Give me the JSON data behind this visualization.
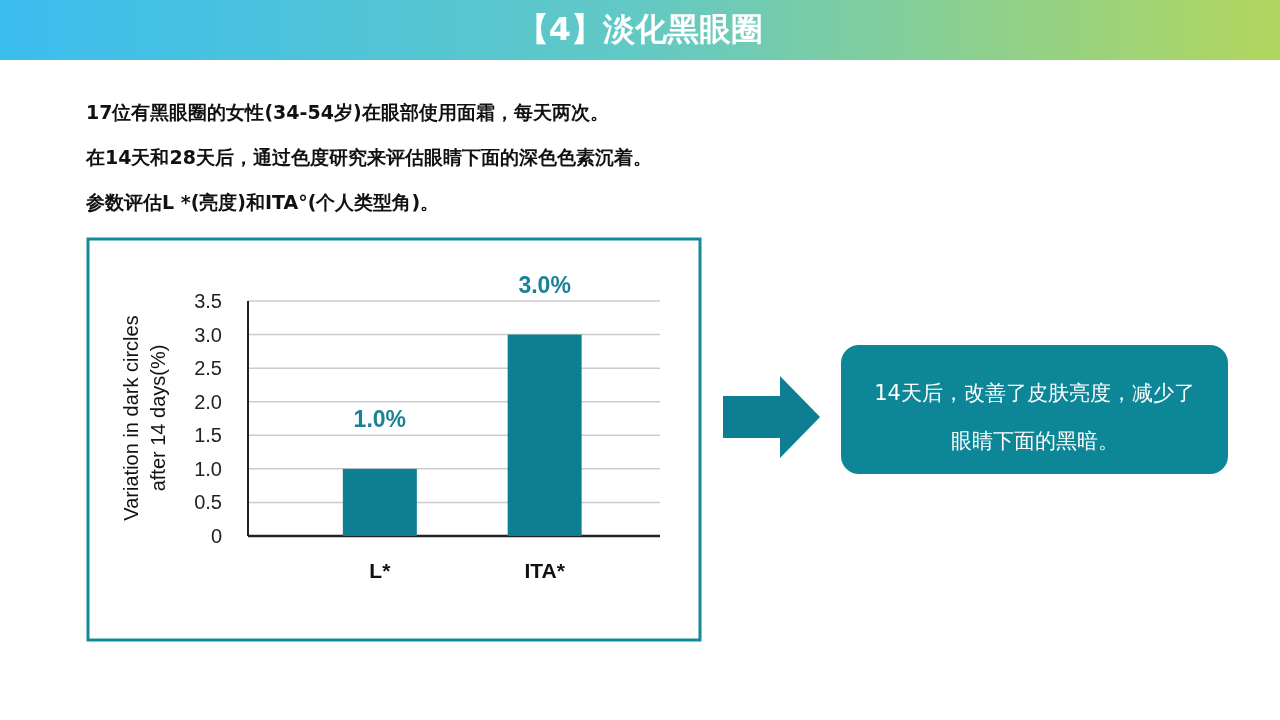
{
  "chart_data": {
    "type": "bar",
    "title": "【4】淡化黑眼圈",
    "annotations": [
      "17位有黑眼圈的女性(34-54岁)在眼部使用面霜，每天两次。",
      "在14天和28天后，通过色度研究来评估眼睛下面的深色色素沉着。",
      "参数评估L *(亮度)和ITA°(个人类型角)。",
      "14天后，改善了皮肤亮度，减少了眼睛下面的黑暗。"
    ],
    "ylabel": "Variation in dark circles after 14 days(%)",
    "categories": [
      "L*",
      "ITA*"
    ],
    "values": [
      1.0,
      3.0
    ],
    "value_labels": [
      "1.0%",
      "3.0%"
    ],
    "color": "#0e7f93",
    "ylim": [
      0,
      3.5
    ],
    "yticks": [
      0,
      0.5,
      {
        "value": 1,
        "label": "1.0"
      },
      1.5,
      {
        "value": 2,
        "label": "2.0"
      },
      2.5,
      {
        "value": 3,
        "label": "3.0"
      },
      3.5
    ],
    "grid": "y"
  }
}
